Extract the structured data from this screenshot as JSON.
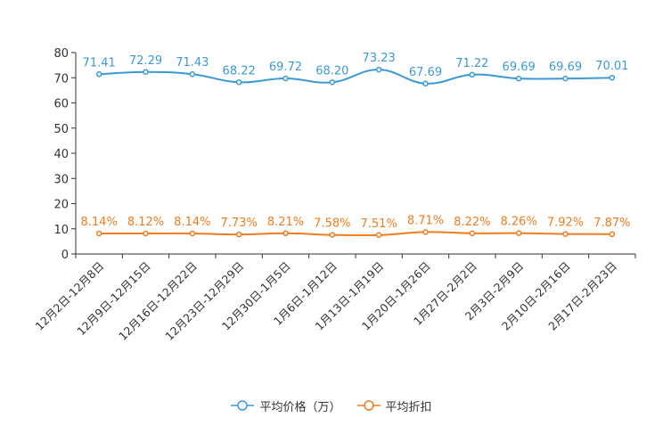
{
  "chart_data": {
    "type": "line",
    "categories": [
      "12月2日-12月8日",
      "12月9日-12月15日",
      "12月16日-12月22日",
      "12月23日-12月29日",
      "12月30日-1月5日",
      "1月6日-1月12日",
      "1月13日-1月19日",
      "1月20日-1月26日",
      "1月27日-2月2日",
      "2月3日-2月9日",
      "2月10日-2月16日",
      "2月17日-2月23日"
    ],
    "series": [
      {
        "name": "平均价格（万）",
        "color": "#3a9ad5",
        "values": [
          71.41,
          72.29,
          71.43,
          68.22,
          69.72,
          68.2,
          73.23,
          67.69,
          71.22,
          69.69,
          69.69,
          70.01
        ],
        "labels": [
          "71.41",
          "72.29",
          "71.43",
          "68.22",
          "69.72",
          "68.20",
          "73.23",
          "67.69",
          "71.22",
          "69.69",
          "69.69",
          "70.01"
        ]
      },
      {
        "name": "平均折扣",
        "color": "#f07c1e",
        "values": [
          8.14,
          8.12,
          8.14,
          7.73,
          8.21,
          7.58,
          7.51,
          8.71,
          8.22,
          8.26,
          7.92,
          7.87
        ],
        "labels": [
          "8.14%",
          "8.12%",
          "8.14%",
          "7.73%",
          "8.21%",
          "7.58%",
          "7.51%",
          "8.71%",
          "8.22%",
          "8.26%",
          "7.92%",
          "7.87%"
        ]
      }
    ],
    "yticks": [
      "0",
      "10",
      "20",
      "30",
      "40",
      "50",
      "60",
      "70",
      "80"
    ],
    "ylim": [
      0,
      80
    ],
    "legend_position": "bottom-center",
    "title": "",
    "xlabel": "",
    "ylabel": ""
  }
}
